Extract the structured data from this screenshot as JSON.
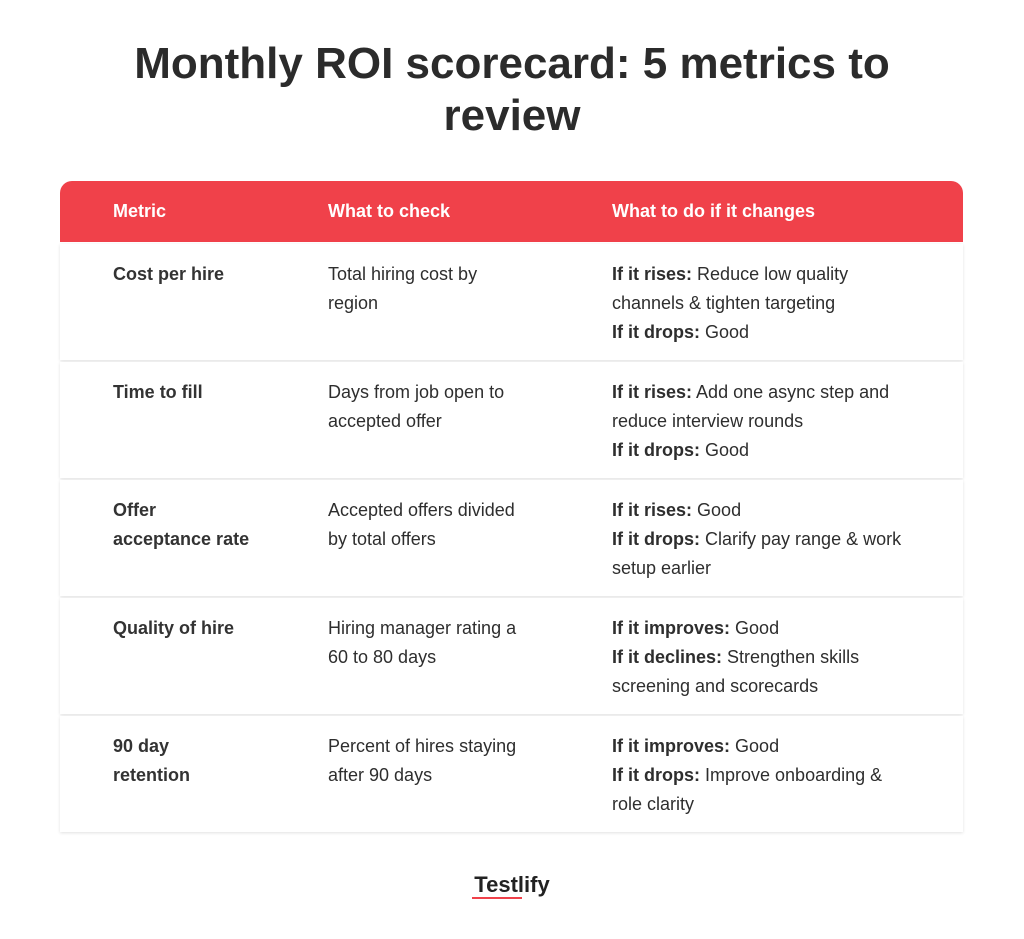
{
  "header": {
    "title": "Monthly ROI scorecard: 5 metrics to review"
  },
  "table": {
    "columns": [
      "Metric",
      "What to check",
      "What to do if it changes"
    ],
    "rows": [
      {
        "metric": [
          "Cost per hire"
        ],
        "check": [
          "Total hiring cost by",
          "region"
        ],
        "actions": [
          {
            "label": "If it rises:",
            "text": "Reduce low quality channels & tighten targeting"
          },
          {
            "label": "If it drops:",
            "text": "Good"
          }
        ]
      },
      {
        "metric": [
          "Time to fill"
        ],
        "check": [
          "Days from job open to",
          "accepted offer"
        ],
        "actions": [
          {
            "label": "If it rises:",
            "text": "Add one async step and reduce interview rounds"
          },
          {
            "label": "If it drops:",
            "text": "Good"
          }
        ]
      },
      {
        "metric": [
          "Offer",
          "acceptance rate"
        ],
        "check": [
          "Accepted offers divided",
          "by total offers"
        ],
        "actions": [
          {
            "label": "If it rises:",
            "text": "Good"
          },
          {
            "label": "If it drops:",
            "text": "Clarify pay range & work setup earlier"
          }
        ]
      },
      {
        "metric": [
          "Quality of hire"
        ],
        "check": [
          "Hiring manager rating a",
          "60 to 80 days"
        ],
        "actions": [
          {
            "label": "If it improves:",
            "text": "Good"
          },
          {
            "label": "If it declines:",
            "text": "Strengthen skills screening and scorecards"
          }
        ]
      },
      {
        "metric": [
          "90 day",
          "retention"
        ],
        "check": [
          "Percent of hires staying",
          "after 90 days"
        ],
        "actions": [
          {
            "label": "If it improves:",
            "text": "Good"
          },
          {
            "label": "If it drops:",
            "text": "Improve onboarding & role clarity"
          }
        ]
      }
    ]
  },
  "footer": {
    "logo": "Testlify"
  }
}
